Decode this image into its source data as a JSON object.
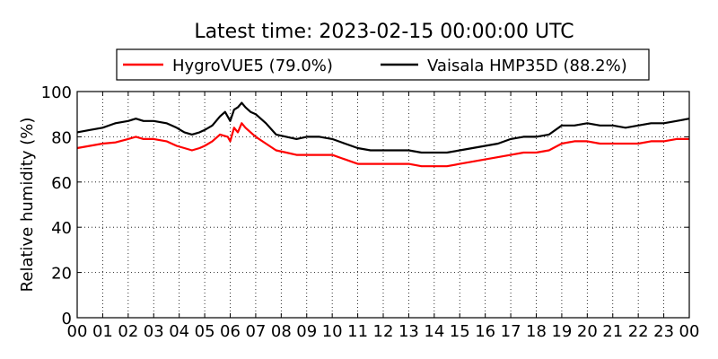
{
  "chart_data": {
    "type": "line",
    "title": "Latest time: 2023-02-15 00:00:00 UTC",
    "xlabel": "",
    "ylabel": "Relative humidity (%)",
    "xlim": [
      0,
      24
    ],
    "ylim": [
      0,
      100
    ],
    "x_tick_labels": [
      "00",
      "01",
      "02",
      "03",
      "04",
      "05",
      "06",
      "07",
      "08",
      "09",
      "10",
      "11",
      "12",
      "13",
      "14",
      "15",
      "16",
      "17",
      "18",
      "19",
      "20",
      "21",
      "22",
      "23",
      "00"
    ],
    "y_tick_labels": [
      "0",
      "20",
      "40",
      "60",
      "80",
      "100"
    ],
    "grid": true,
    "legend_position": "top",
    "series": [
      {
        "name": "HygroVUE5 (79.0%)",
        "color": "#ff0000",
        "points": [
          [
            0,
            75
          ],
          [
            0.5,
            76
          ],
          [
            1,
            77
          ],
          [
            1.5,
            77.5
          ],
          [
            2,
            79
          ],
          [
            2.3,
            80
          ],
          [
            2.6,
            79
          ],
          [
            3,
            79
          ],
          [
            3.5,
            78
          ],
          [
            3.9,
            76
          ],
          [
            4.2,
            75
          ],
          [
            4.5,
            74
          ],
          [
            4.8,
            75
          ],
          [
            5,
            76
          ],
          [
            5.3,
            78
          ],
          [
            5.6,
            81
          ],
          [
            5.9,
            80
          ],
          [
            6.0,
            78
          ],
          [
            6.15,
            84
          ],
          [
            6.3,
            82
          ],
          [
            6.45,
            86
          ],
          [
            6.6,
            84
          ],
          [
            6.8,
            82
          ],
          [
            7,
            80
          ],
          [
            7.4,
            77
          ],
          [
            7.8,
            74
          ],
          [
            8.2,
            73
          ],
          [
            8.6,
            72
          ],
          [
            9,
            72
          ],
          [
            9.5,
            72
          ],
          [
            10,
            72
          ],
          [
            10.5,
            70
          ],
          [
            11,
            68
          ],
          [
            11.5,
            68
          ],
          [
            12,
            68
          ],
          [
            12.5,
            68
          ],
          [
            13,
            68
          ],
          [
            13.5,
            67
          ],
          [
            14,
            67
          ],
          [
            14.5,
            67
          ],
          [
            15,
            68
          ],
          [
            15.5,
            69
          ],
          [
            16,
            70
          ],
          [
            16.5,
            71
          ],
          [
            17,
            72
          ],
          [
            17.5,
            73
          ],
          [
            18,
            73
          ],
          [
            18.5,
            74
          ],
          [
            19,
            77
          ],
          [
            19.5,
            78
          ],
          [
            20,
            78
          ],
          [
            20.5,
            77
          ],
          [
            21,
            77
          ],
          [
            21.5,
            77
          ],
          [
            22,
            77
          ],
          [
            22.5,
            78
          ],
          [
            23,
            78
          ],
          [
            23.5,
            79
          ],
          [
            24,
            79
          ]
        ]
      },
      {
        "name": "Vaisala HMP35D (88.2%)",
        "color": "#000000",
        "points": [
          [
            0,
            82
          ],
          [
            0.5,
            83
          ],
          [
            1,
            84
          ],
          [
            1.5,
            86
          ],
          [
            2,
            87
          ],
          [
            2.3,
            88
          ],
          [
            2.6,
            87
          ],
          [
            3,
            87
          ],
          [
            3.5,
            86
          ],
          [
            3.9,
            84
          ],
          [
            4.2,
            82
          ],
          [
            4.5,
            81
          ],
          [
            4.8,
            82
          ],
          [
            5,
            83
          ],
          [
            5.3,
            85
          ],
          [
            5.6,
            89
          ],
          [
            5.8,
            91
          ],
          [
            6.0,
            87
          ],
          [
            6.15,
            92
          ],
          [
            6.3,
            93
          ],
          [
            6.45,
            95
          ],
          [
            6.6,
            93
          ],
          [
            6.8,
            91
          ],
          [
            7,
            90
          ],
          [
            7.4,
            86
          ],
          [
            7.8,
            81
          ],
          [
            8.2,
            80
          ],
          [
            8.6,
            79
          ],
          [
            9,
            80
          ],
          [
            9.5,
            80
          ],
          [
            10,
            79
          ],
          [
            10.5,
            77
          ],
          [
            11,
            75
          ],
          [
            11.5,
            74
          ],
          [
            12,
            74
          ],
          [
            12.5,
            74
          ],
          [
            13,
            74
          ],
          [
            13.5,
            73
          ],
          [
            14,
            73
          ],
          [
            14.5,
            73
          ],
          [
            15,
            74
          ],
          [
            15.5,
            75
          ],
          [
            16,
            76
          ],
          [
            16.5,
            77
          ],
          [
            17,
            79
          ],
          [
            17.5,
            80
          ],
          [
            18,
            80
          ],
          [
            18.5,
            81
          ],
          [
            19,
            85
          ],
          [
            19.5,
            85
          ],
          [
            20,
            86
          ],
          [
            20.5,
            85
          ],
          [
            21,
            85
          ],
          [
            21.5,
            84
          ],
          [
            22,
            85
          ],
          [
            22.5,
            86
          ],
          [
            23,
            86
          ],
          [
            23.5,
            87
          ],
          [
            24,
            88
          ]
        ]
      }
    ]
  }
}
